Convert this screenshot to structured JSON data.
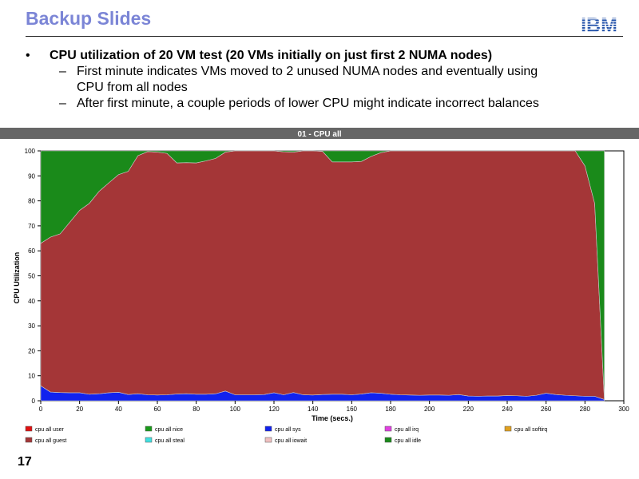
{
  "slide": {
    "title": "Backup Slides",
    "logo_text": "IBM",
    "page_number": "17",
    "bullet_main": "CPU utilization of 20 VM test (20 VMs initially on just first 2 NUMA nodes)",
    "sub_bullet_1_line1": "First minute indicates VMs moved to 2 unused NUMA nodes and eventually using",
    "sub_bullet_1_line2": "CPU from all nodes",
    "sub_bullet_2": "After first minute, a couple periods of lower CPU might indicate incorrect balances",
    "bullet_glyph": "•",
    "dash_glyph": "–"
  },
  "colors": {
    "title": "#7b85d6",
    "chart_title_bar": "#666666",
    "plot_bg": "#ffffff",
    "guest": "#a43637",
    "sys": "#1122ee",
    "idle": "#1a8a1a",
    "user": "#e01010",
    "nice": "#199a19",
    "irq": "#e040e0",
    "softirq": "#e0a020",
    "steal": "#40e0e0",
    "iowait": "#f0c0c0",
    "logo": "#1f4fa8"
  },
  "chart_data": {
    "type": "area",
    "title": "01 - CPU all",
    "xlabel": "Time (secs.)",
    "ylabel": "CPU Utilization",
    "xlim": [
      0,
      300
    ],
    "ylim": [
      0,
      100
    ],
    "x_ticks": [
      0,
      20,
      40,
      60,
      80,
      100,
      120,
      140,
      160,
      180,
      200,
      220,
      240,
      260,
      280,
      300
    ],
    "y_ticks": [
      0,
      10,
      20,
      30,
      40,
      50,
      60,
      70,
      80,
      90,
      100
    ],
    "grid": false,
    "legend_position": "bottom",
    "stacked": true,
    "x": [
      0,
      5,
      10,
      15,
      20,
      25,
      30,
      35,
      40,
      45,
      50,
      55,
      60,
      65,
      70,
      75,
      80,
      85,
      90,
      95,
      100,
      105,
      110,
      115,
      120,
      125,
      130,
      135,
      140,
      145,
      150,
      155,
      160,
      165,
      170,
      175,
      180,
      185,
      190,
      195,
      200,
      205,
      210,
      215,
      220,
      225,
      230,
      235,
      240,
      245,
      250,
      255,
      260,
      265,
      270,
      275,
      280,
      285,
      290
    ],
    "series": [
      {
        "name": "cpu all sys",
        "color_key": "sys",
        "values": [
          6,
          3.5,
          3.3,
          3.2,
          3.2,
          2.6,
          2.8,
          3.2,
          3.4,
          2.5,
          2.8,
          2.4,
          2.3,
          2.4,
          2.7,
          2.8,
          2.6,
          2.6,
          2.8,
          3.9,
          2.4,
          2.4,
          2.4,
          2.5,
          3.2,
          2.4,
          3.3,
          2.4,
          2.3,
          2.5,
          2.6,
          2.6,
          2.4,
          2.7,
          3.2,
          3.0,
          2.6,
          2.4,
          2.3,
          2.2,
          2.3,
          2.3,
          2.2,
          2.5,
          1.9,
          1.8,
          1.9,
          1.9,
          2.1,
          2.0,
          1.8,
          2.2,
          3.0,
          2.5,
          2.2,
          2.0,
          1.8,
          1.8,
          0.5
        ]
      },
      {
        "name": "cpu all guest",
        "color_key": "guest",
        "values": [
          57,
          62,
          63.5,
          68.3,
          73,
          76.4,
          81,
          84,
          87.1,
          89.3,
          95.3,
          97.3,
          97.2,
          96.6,
          92.5,
          92.5,
          92.6,
          93.4,
          94.2,
          95.6,
          97.6,
          97.6,
          97.6,
          97.5,
          96.8,
          97.2,
          96.2,
          97.6,
          97.7,
          97.3,
          93,
          93,
          93.2,
          93.1,
          94.6,
          96.3,
          97.4,
          97.6,
          97.7,
          97.8,
          97.7,
          97.7,
          97.8,
          97.5,
          98.1,
          98.2,
          98.1,
          98.1,
          97.9,
          98,
          98.2,
          97.8,
          97,
          97.5,
          97.8,
          98,
          92.2,
          77.2,
          0
        ]
      },
      {
        "name": "cpu all idle",
        "color_key": "idle",
        "values": [
          37,
          34.5,
          33.2,
          28.5,
          23.8,
          21,
          16.2,
          12.8,
          9.5,
          8.2,
          1.9,
          0.3,
          0.5,
          1,
          4.8,
          4.7,
          4.8,
          4,
          3,
          0.5,
          0,
          0,
          0,
          0,
          0,
          0.4,
          0.5,
          0,
          0,
          0.2,
          4.4,
          4.4,
          4.4,
          4.2,
          2.2,
          0.7,
          0,
          0,
          0,
          0,
          0,
          0,
          0,
          0,
          0,
          0,
          0,
          0,
          0,
          0,
          0,
          0,
          0,
          0,
          0,
          0,
          6,
          21,
          99.5
        ]
      }
    ],
    "legend": [
      {
        "label": "cpu all user",
        "color_key": "user"
      },
      {
        "label": "cpu all nice",
        "color_key": "nice"
      },
      {
        "label": "cpu all sys",
        "color_key": "sys"
      },
      {
        "label": "cpu all irq",
        "color_key": "irq"
      },
      {
        "label": "cpu all softirq",
        "color_key": "softirq"
      },
      {
        "label": "cpu all guest",
        "color_key": "guest"
      },
      {
        "label": "cpu all steal",
        "color_key": "steal"
      },
      {
        "label": "cpu all iowait",
        "color_key": "iowait"
      },
      {
        "label": "cpu all idle",
        "color_key": "idle"
      }
    ]
  }
}
